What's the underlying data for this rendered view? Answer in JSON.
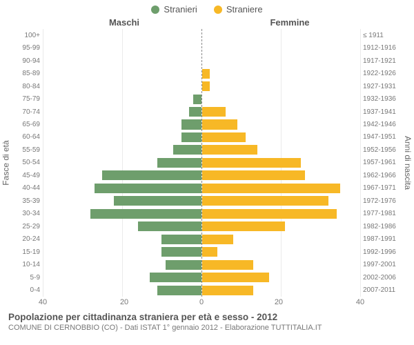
{
  "legend": {
    "male_label": "Stranieri",
    "female_label": "Straniere"
  },
  "column_titles": {
    "left": "Maschi",
    "right": "Femmine"
  },
  "axis_titles": {
    "left": "Fasce di età",
    "right": "Anni di nascita"
  },
  "footer": {
    "title": "Popolazione per cittadinanza straniera per età e sesso - 2012",
    "subtitle": "COMUNE DI CERNOBBIO (CO) - Dati ISTAT 1° gennaio 2012 - Elaborazione TUTTITALIA.IT"
  },
  "colors": {
    "male": "#6e9e6c",
    "female": "#f7b826",
    "grid": "#eaeaea",
    "background": "#ffffff",
    "text": "#555555"
  },
  "chart": {
    "type": "population-pyramid",
    "xlim": 40,
    "xtick_step": 20,
    "bar_gap_pct": 12,
    "rows": [
      {
        "age": "100+",
        "year": "≤ 1911",
        "m": 0,
        "f": 0
      },
      {
        "age": "95-99",
        "year": "1912-1916",
        "m": 0,
        "f": 0
      },
      {
        "age": "90-94",
        "year": "1917-1921",
        "m": 0,
        "f": 0
      },
      {
        "age": "85-89",
        "year": "1922-1926",
        "m": 0,
        "f": 2
      },
      {
        "age": "80-84",
        "year": "1927-1931",
        "m": 0,
        "f": 2
      },
      {
        "age": "75-79",
        "year": "1932-1936",
        "m": 2,
        "f": 0
      },
      {
        "age": "70-74",
        "year": "1937-1941",
        "m": 3,
        "f": 6
      },
      {
        "age": "65-69",
        "year": "1942-1946",
        "m": 5,
        "f": 9
      },
      {
        "age": "60-64",
        "year": "1947-1951",
        "m": 5,
        "f": 11
      },
      {
        "age": "55-59",
        "year": "1952-1956",
        "m": 7,
        "f": 14
      },
      {
        "age": "50-54",
        "year": "1957-1961",
        "m": 11,
        "f": 25
      },
      {
        "age": "45-49",
        "year": "1962-1966",
        "m": 25,
        "f": 26
      },
      {
        "age": "40-44",
        "year": "1967-1971",
        "m": 27,
        "f": 35
      },
      {
        "age": "35-39",
        "year": "1972-1976",
        "m": 22,
        "f": 32
      },
      {
        "age": "30-34",
        "year": "1977-1981",
        "m": 28,
        "f": 34
      },
      {
        "age": "25-29",
        "year": "1982-1986",
        "m": 16,
        "f": 21
      },
      {
        "age": "20-24",
        "year": "1987-1991",
        "m": 10,
        "f": 8
      },
      {
        "age": "15-19",
        "year": "1992-1996",
        "m": 10,
        "f": 4
      },
      {
        "age": "10-14",
        "year": "1997-2001",
        "m": 9,
        "f": 13
      },
      {
        "age": "5-9",
        "year": "2002-2006",
        "m": 13,
        "f": 17
      },
      {
        "age": "0-4",
        "year": "2007-2011",
        "m": 11,
        "f": 13
      }
    ],
    "x_ticks_left": [
      "40",
      "20",
      "0"
    ],
    "x_ticks_right": [
      "0",
      "20",
      "40"
    ]
  }
}
